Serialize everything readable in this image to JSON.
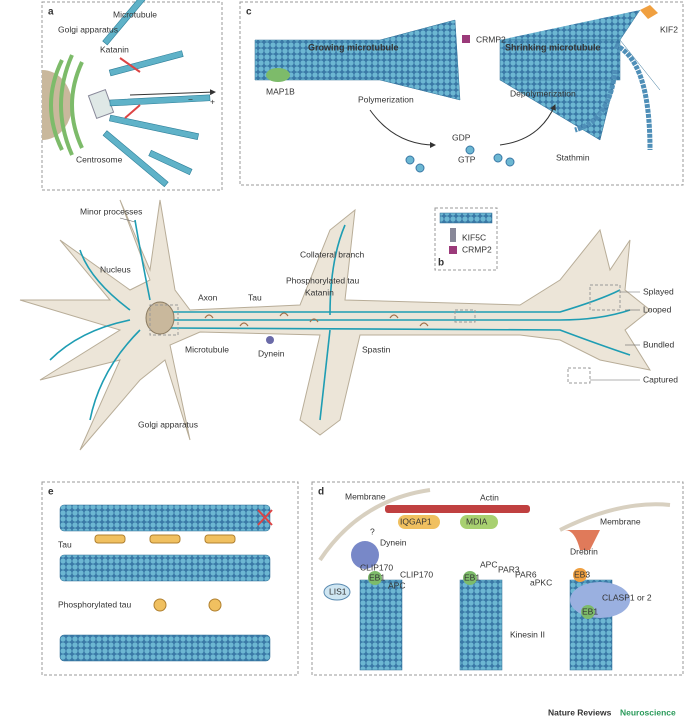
{
  "panel_a": {
    "label": "a",
    "microtubule": "Microtubule",
    "golgi": "Golgi apparatus",
    "katanin": "Katanin",
    "centrosome": "Centrosome",
    "minus": "−",
    "plus": "+"
  },
  "panel_c": {
    "label": "c",
    "growing": "Growing microtubule",
    "shrinking": "Shrinking microtubule",
    "crmp2": "CRMP2",
    "kif2": "KIF2",
    "map1b": "MAP1B",
    "polymerization": "Polymerization",
    "depolymerization": "Depolymerization",
    "stathmin": "Stathmin",
    "gdp": "GDP",
    "gtp": "GTP"
  },
  "neuron": {
    "minor_processes": "Minor processes",
    "nucleus": "Nucleus",
    "axon": "Axon",
    "tau": "Tau",
    "collateral_branch": "Collateral branch",
    "phosphorylated_tau": "Phosphorylated tau",
    "katanin": "Katanin",
    "microtubule": "Microtubule",
    "dynein": "Dynein",
    "spastin": "Spastin",
    "golgi": "Golgi apparatus",
    "splayed": "Splayed",
    "looped": "Looped",
    "bundled": "Bundled",
    "captured": "Captured"
  },
  "panel_b": {
    "label": "b",
    "kif5c": "KIF5C",
    "crmp2": "CRMP2"
  },
  "panel_e": {
    "label": "e",
    "tau": "Tau",
    "phosphorylated_tau": "Phosphorylated tau"
  },
  "panel_d": {
    "label": "d",
    "membrane_left": "Membrane",
    "actin": "Actin",
    "iqgap1": "IQGAP1",
    "mdia": "MDIA",
    "question": "?",
    "dynein": "Dynein",
    "lis1": "LIS1",
    "clip170_a": "CLIP170",
    "clip170_b": "CLIP170",
    "eb1_a": "EB1",
    "eb1_b": "EB1",
    "eb1_c": "EB1",
    "apc_a": "APC",
    "apc_b": "APC",
    "par3": "PAR3",
    "par6": "PAR6",
    "apkc": "aPKC",
    "kinesin2": "Kinesin II",
    "membrane_right": "Membrane",
    "drebrin": "Drebrin",
    "eb3": "EB3",
    "clasp": "CLASP1 or 2"
  },
  "footer": {
    "journal": "Nature Reviews",
    "section": "Neuroscience"
  }
}
